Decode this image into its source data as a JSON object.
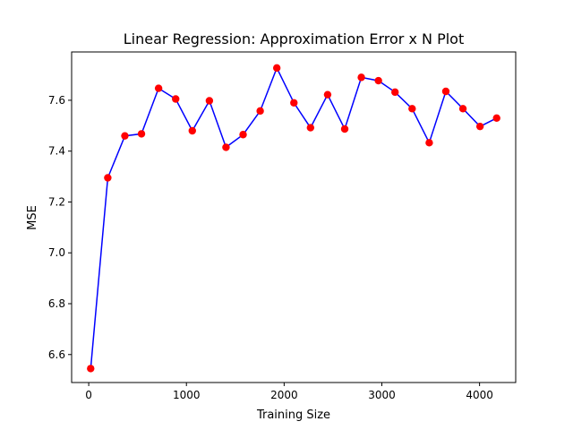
{
  "chart_data": {
    "type": "line",
    "title": "Linear Regression: Approximation Error x N Plot",
    "xlabel": "Training Size",
    "ylabel": "MSE",
    "xlim": [
      -175,
      4370
    ],
    "ylim": [
      6.49,
      7.79
    ],
    "xticks": [
      0,
      1000,
      2000,
      3000,
      4000
    ],
    "xtick_labels": [
      "0",
      "1000",
      "2000",
      "3000",
      "4000"
    ],
    "yticks": [
      6.6,
      6.8,
      7.0,
      7.2,
      7.4,
      7.6
    ],
    "ytick_labels": [
      "6.6",
      "6.8",
      "7.0",
      "7.2",
      "7.4",
      "7.6"
    ],
    "grid": false,
    "legend": "none",
    "series": [
      {
        "line_color": "#0000ff",
        "marker_color": "#ff0000",
        "x": [
          20,
          195,
          370,
          540,
          715,
          890,
          1060,
          1235,
          1405,
          1580,
          1755,
          1925,
          2100,
          2270,
          2445,
          2620,
          2790,
          2965,
          3135,
          3310,
          3485,
          3655,
          3830,
          4005,
          4175
        ],
        "y": [
          6.545,
          7.295,
          7.46,
          7.468,
          7.647,
          7.605,
          7.48,
          7.598,
          7.415,
          7.465,
          7.558,
          7.727,
          7.59,
          7.492,
          7.622,
          7.487,
          7.69,
          7.677,
          7.632,
          7.567,
          7.433,
          7.635,
          7.567,
          7.497,
          7.53
        ]
      }
    ]
  }
}
